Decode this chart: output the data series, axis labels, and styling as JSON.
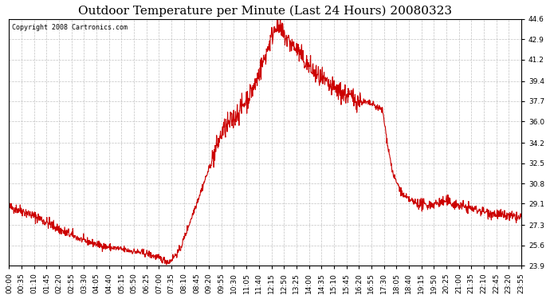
{
  "title": "Outdoor Temperature per Minute (Last 24 Hours) 20080323",
  "copyright": "Copyright 2008 Cartronics.com",
  "line_color": "#cc0000",
  "background_color": "#ffffff",
  "plot_bg_color": "#ffffff",
  "grid_color": "#bbbbbb",
  "ylim": [
    23.9,
    44.6
  ],
  "yticks": [
    23.9,
    25.6,
    27.3,
    29.1,
    30.8,
    32.5,
    34.2,
    36.0,
    37.7,
    39.4,
    41.2,
    42.9,
    44.6
  ],
  "title_fontsize": 11,
  "copyright_fontsize": 6,
  "tick_fontsize": 6.5,
  "line_width": 0.8,
  "xtick_labels": [
    "00:00",
    "00:35",
    "01:10",
    "01:45",
    "02:20",
    "02:55",
    "03:30",
    "04:05",
    "04:40",
    "05:15",
    "05:50",
    "06:25",
    "07:00",
    "07:35",
    "08:10",
    "08:45",
    "09:20",
    "09:55",
    "10:30",
    "11:05",
    "11:40",
    "12:15",
    "12:50",
    "13:25",
    "14:00",
    "14:35",
    "15:10",
    "15:45",
    "16:20",
    "16:55",
    "17:30",
    "18:05",
    "18:40",
    "19:15",
    "19:50",
    "20:25",
    "21:00",
    "21:35",
    "22:10",
    "22:45",
    "23:20",
    "23:55"
  ],
  "figsize": [
    6.9,
    3.75
  ],
  "dpi": 100
}
